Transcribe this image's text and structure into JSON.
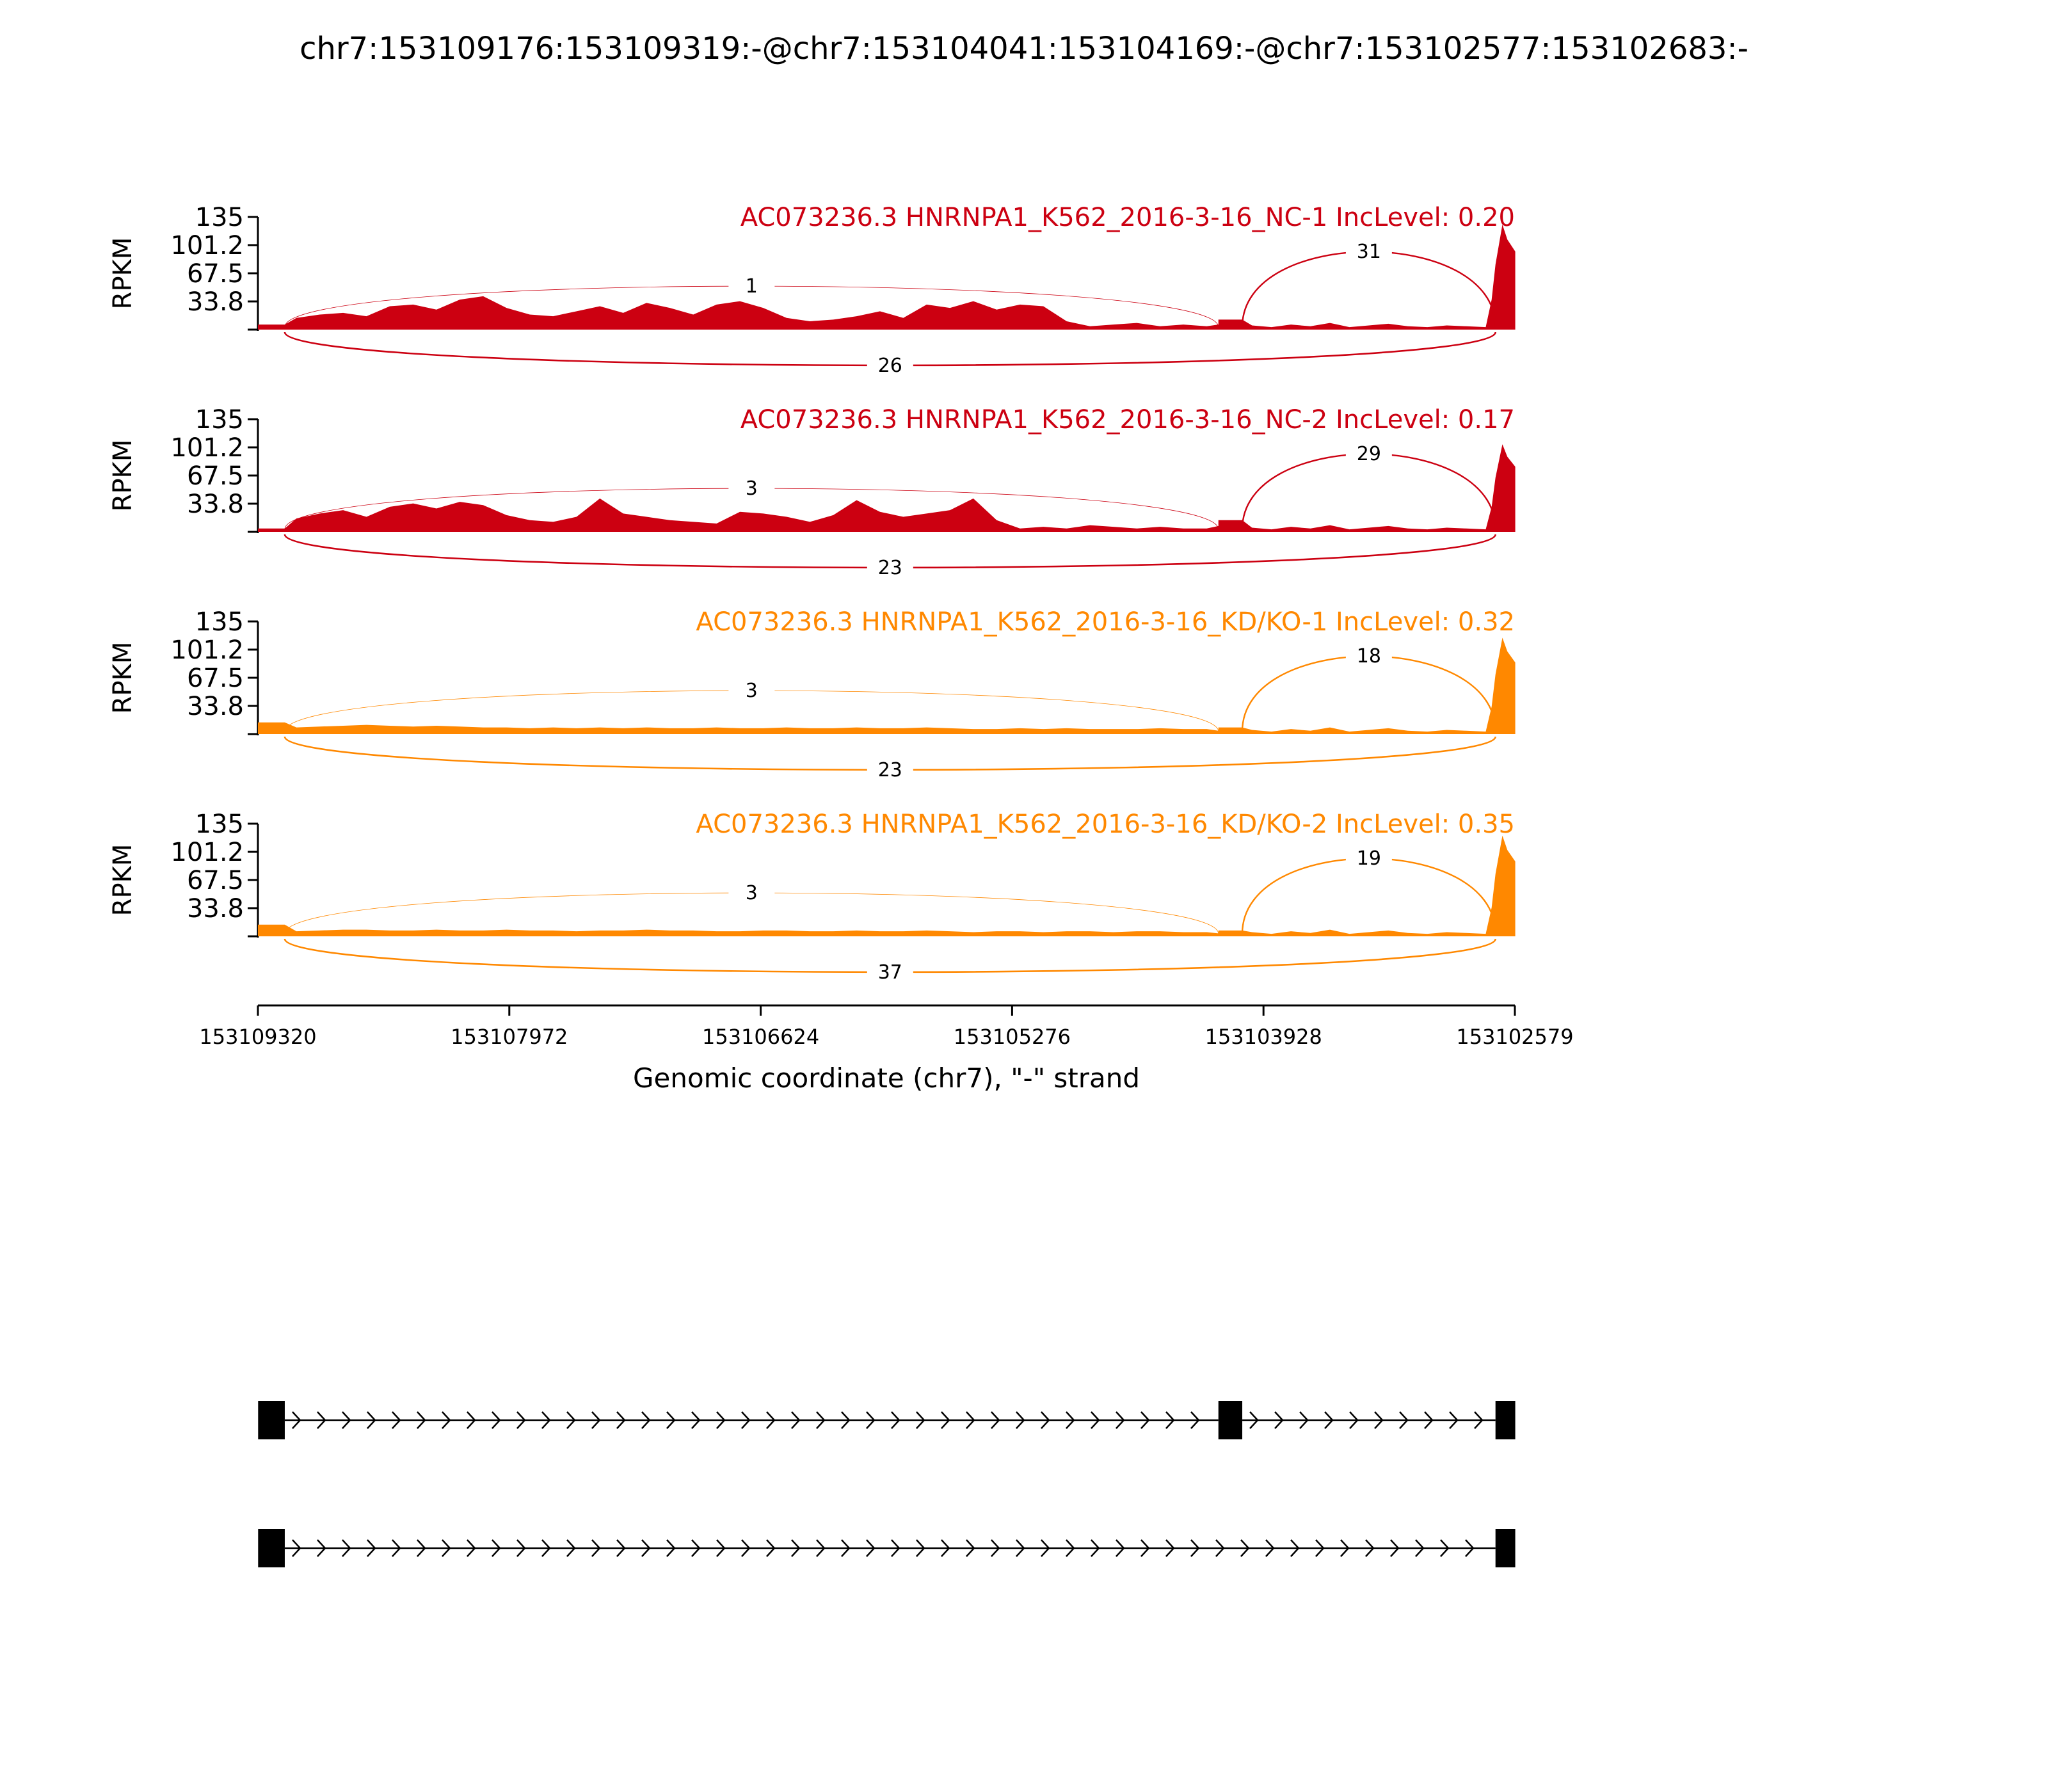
{
  "figure": {
    "title": "chr7:153109176:153109319:-@chr7:153104041:153104169:-@chr7:153102577:153102683:-"
  },
  "colors": {
    "nc": "#cc0011",
    "kd": "#ff8800",
    "axis": "#000000"
  },
  "chart_data": {
    "type": "area",
    "chart_kind": "sashimi",
    "ylabel": "RPKM",
    "ylim": [
      0,
      135
    ],
    "yticks": [
      "135",
      "101.2",
      "67.5",
      "33.8"
    ],
    "xlabel": "Genomic coordinate (chr7), \"-\" strand",
    "xlim": [
      153109320,
      153102579
    ],
    "xticks": [
      "153109320",
      "153107972",
      "153106624",
      "153105276",
      "153103928",
      "153102579"
    ],
    "exons": [
      {
        "start": 153109319,
        "end": 153109176
      },
      {
        "start": 153104169,
        "end": 153104041
      },
      {
        "start": 153102683,
        "end": 153102577
      }
    ],
    "tracks": [
      {
        "title": "AC073236.3 HNRNPA1_K562_2016-3-16_NC-1 IncLevel: 0.20",
        "group": "nc",
        "junctions": [
          {
            "label": "1",
            "from": 153109176,
            "to": 153104169,
            "side": "above"
          },
          {
            "label": "31",
            "from": 153104041,
            "to": 153102683,
            "side": "above"
          },
          {
            "label": "26",
            "from": 153109176,
            "to": 153102683,
            "side": "below"
          }
        ],
        "exon_levels": [
          6,
          12,
          120
        ],
        "intron_profile": [
          14,
          18,
          20,
          16,
          28,
          30,
          24,
          36,
          40,
          26,
          18,
          16,
          22,
          28,
          20,
          32,
          26,
          18,
          30,
          34,
          26,
          14,
          10,
          12,
          16,
          22,
          14,
          30,
          26,
          34,
          24,
          30,
          28,
          10,
          4,
          6,
          8,
          4,
          6,
          4
        ]
      },
      {
        "title": "AC073236.3 HNRNPA1_K562_2016-3-16_NC-2 IncLevel: 0.17",
        "group": "nc",
        "junctions": [
          {
            "label": "3",
            "from": 153109176,
            "to": 153104169,
            "side": "above"
          },
          {
            "label": "29",
            "from": 153104041,
            "to": 153102683,
            "side": "above"
          },
          {
            "label": "23",
            "from": 153109176,
            "to": 153102683,
            "side": "below"
          }
        ],
        "exon_levels": [
          4,
          14,
          100
        ],
        "intron_profile": [
          16,
          22,
          26,
          18,
          30,
          34,
          28,
          36,
          32,
          20,
          14,
          12,
          18,
          40,
          22,
          18,
          14,
          12,
          10,
          24,
          22,
          18,
          12,
          20,
          38,
          24,
          18,
          22,
          26,
          40,
          14,
          4,
          6,
          4,
          8,
          6,
          4,
          6,
          4,
          4
        ]
      },
      {
        "title": "AC073236.3 HNRNPA1_K562_2016-3-16_KD/KO-1 IncLevel: 0.32",
        "group": "kd",
        "junctions": [
          {
            "label": "3",
            "from": 153109176,
            "to": 153104169,
            "side": "above"
          },
          {
            "label": "18",
            "from": 153104041,
            "to": 153102683,
            "side": "above"
          },
          {
            "label": "23",
            "from": 153109176,
            "to": 153102683,
            "side": "below"
          }
        ],
        "exon_levels": [
          14,
          8,
          110
        ],
        "intron_profile": [
          8,
          9,
          10,
          11,
          10,
          9,
          10,
          9,
          8,
          8,
          7,
          8,
          7,
          8,
          7,
          8,
          7,
          7,
          8,
          7,
          7,
          8,
          7,
          7,
          8,
          7,
          7,
          8,
          7,
          6,
          6,
          7,
          6,
          7,
          6,
          6,
          6,
          7,
          6,
          6
        ]
      },
      {
        "title": "AC073236.3 HNRNPA1_K562_2016-3-16_KD/KO-2 IncLevel: 0.35",
        "group": "kd",
        "junctions": [
          {
            "label": "3",
            "from": 153109176,
            "to": 153104169,
            "side": "above"
          },
          {
            "label": "19",
            "from": 153104041,
            "to": 153102683,
            "side": "above"
          },
          {
            "label": "37",
            "from": 153109176,
            "to": 153102683,
            "side": "below"
          }
        ],
        "exon_levels": [
          14,
          7,
          115
        ],
        "intron_profile": [
          6,
          7,
          8,
          8,
          7,
          7,
          8,
          7,
          7,
          8,
          7,
          7,
          6,
          7,
          7,
          8,
          7,
          7,
          6,
          6,
          7,
          7,
          6,
          6,
          7,
          6,
          6,
          7,
          6,
          5,
          6,
          6,
          5,
          6,
          6,
          5,
          6,
          6,
          5,
          5
        ]
      }
    ],
    "isoforms": [
      {
        "exon_indices": [
          0,
          1,
          2
        ]
      },
      {
        "exon_indices": [
          0,
          2
        ]
      }
    ]
  }
}
